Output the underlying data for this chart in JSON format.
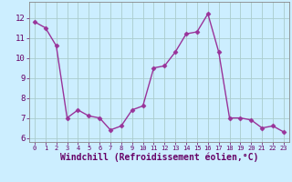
{
  "x": [
    0,
    1,
    2,
    3,
    4,
    5,
    6,
    7,
    8,
    9,
    10,
    11,
    12,
    13,
    14,
    15,
    16,
    17,
    18,
    19,
    20,
    21,
    22,
    23
  ],
  "y": [
    11.8,
    11.5,
    10.6,
    7.0,
    7.4,
    7.1,
    7.0,
    6.4,
    6.6,
    7.4,
    7.6,
    9.5,
    9.6,
    10.3,
    11.2,
    11.3,
    12.2,
    10.3,
    7.0,
    7.0,
    6.9,
    6.5,
    6.6,
    6.3
  ],
  "line_color": "#993399",
  "marker": "D",
  "markersize": 2.5,
  "linewidth": 1.0,
  "bg_color": "#cceeff",
  "grid_color": "#aacccc",
  "xlabel": "Windchill (Refroidissement éolien,°C)",
  "ylim": [
    5.8,
    12.8
  ],
  "xlim": [
    -0.5,
    23.5
  ],
  "yticks": [
    6,
    7,
    8,
    9,
    10,
    11,
    12
  ],
  "xticks": [
    0,
    1,
    2,
    3,
    4,
    5,
    6,
    7,
    8,
    9,
    10,
    11,
    12,
    13,
    14,
    15,
    16,
    17,
    18,
    19,
    20,
    21,
    22,
    23
  ],
  "tick_color": "#660066",
  "label_color": "#660066",
  "spine_color": "#888888",
  "x_tick_fontsize": 5.0,
  "y_tick_fontsize": 6.5,
  "xlabel_fontsize": 7.0
}
